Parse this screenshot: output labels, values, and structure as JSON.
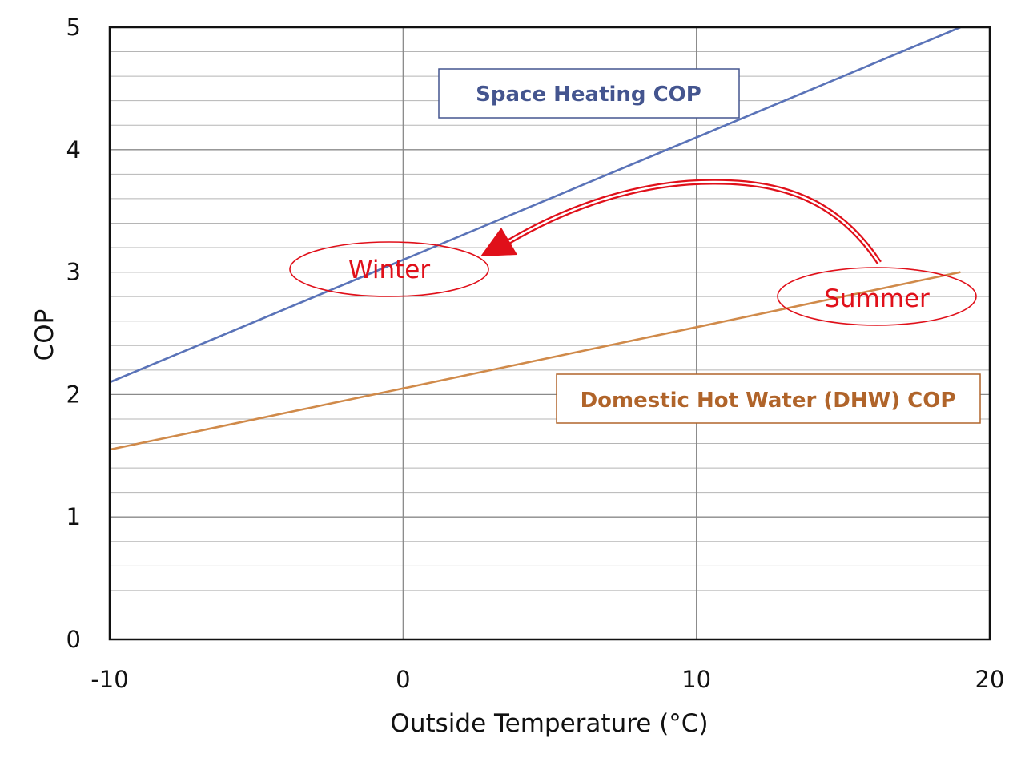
{
  "chart_data": {
    "type": "line",
    "title": "",
    "xlabel": "Outside Temperature (°C)",
    "ylabel": "COP",
    "xlim": [
      -10,
      20
    ],
    "ylim": [
      0,
      5
    ],
    "x_ticks": [
      -10,
      0,
      10,
      20
    ],
    "y_ticks": [
      0,
      1,
      2,
      3,
      4,
      5
    ],
    "y_minor_step": 0.2,
    "grid": true,
    "series": [
      {
        "name": "Space Heating COP",
        "color": "#5a73b8",
        "x": [
          -10,
          19
        ],
        "y": [
          2.1,
          5.0
        ]
      },
      {
        "name": "Domestic Hot Water (DHW) COP",
        "color": "#d08a4a",
        "x": [
          -10,
          19
        ],
        "y": [
          1.55,
          3.0
        ]
      }
    ],
    "labels": {
      "space_heating": "Space Heating COP",
      "dhw": "Domestic Hot Water (DHW) COP"
    },
    "annotations": {
      "winter": "Winter",
      "summer": "Summer",
      "arrow_from": "Summer",
      "arrow_to": "Winter"
    },
    "colors": {
      "space_heating_text": "#44558f",
      "dhw_text": "#b0642a",
      "annotation": "#e0101a",
      "grid_major": "#8a8a8a",
      "grid_minor": "#b5b5b5"
    }
  }
}
